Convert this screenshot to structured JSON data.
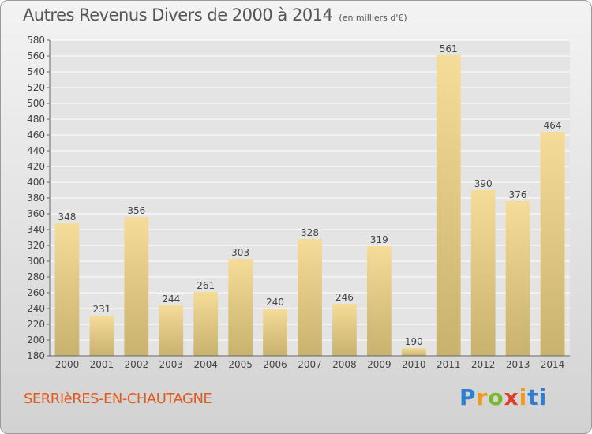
{
  "header": {
    "title": "Autres Revenus Divers de 2000 à 2014",
    "unit": "(en milliers d'€)"
  },
  "footer": {
    "place": "SERRIèRES-EN-CHAUTAGNE",
    "logo_letters": [
      "P",
      "r",
      "o",
      "x",
      "i",
      "ti"
    ]
  },
  "colors": {
    "bar_top": "#f5dc98",
    "bar_bottom": "#c8b26e",
    "grid": "#ffffff",
    "axis": "#666666",
    "plot_background": "#e4e4e4",
    "title_text": "#555555",
    "place_text": "#e25a1c"
  },
  "chart_data": {
    "type": "bar",
    "title": "Autres Revenus Divers de 2000 à 2014",
    "subtitle": "(en milliers d'€)",
    "xlabel": "",
    "ylabel": "",
    "ylim": [
      180,
      580
    ],
    "y_ticks": [
      180,
      200,
      220,
      240,
      260,
      280,
      300,
      320,
      340,
      360,
      380,
      400,
      420,
      440,
      460,
      480,
      500,
      520,
      540,
      560,
      580
    ],
    "grid": true,
    "categories": [
      "2000",
      "2001",
      "2002",
      "2003",
      "2004",
      "2005",
      "2006",
      "2007",
      "2008",
      "2009",
      "2010",
      "2011",
      "2012",
      "2013",
      "2014"
    ],
    "values": [
      348,
      231,
      356,
      244,
      261,
      303,
      240,
      328,
      246,
      319,
      190,
      561,
      390,
      376,
      464
    ]
  }
}
